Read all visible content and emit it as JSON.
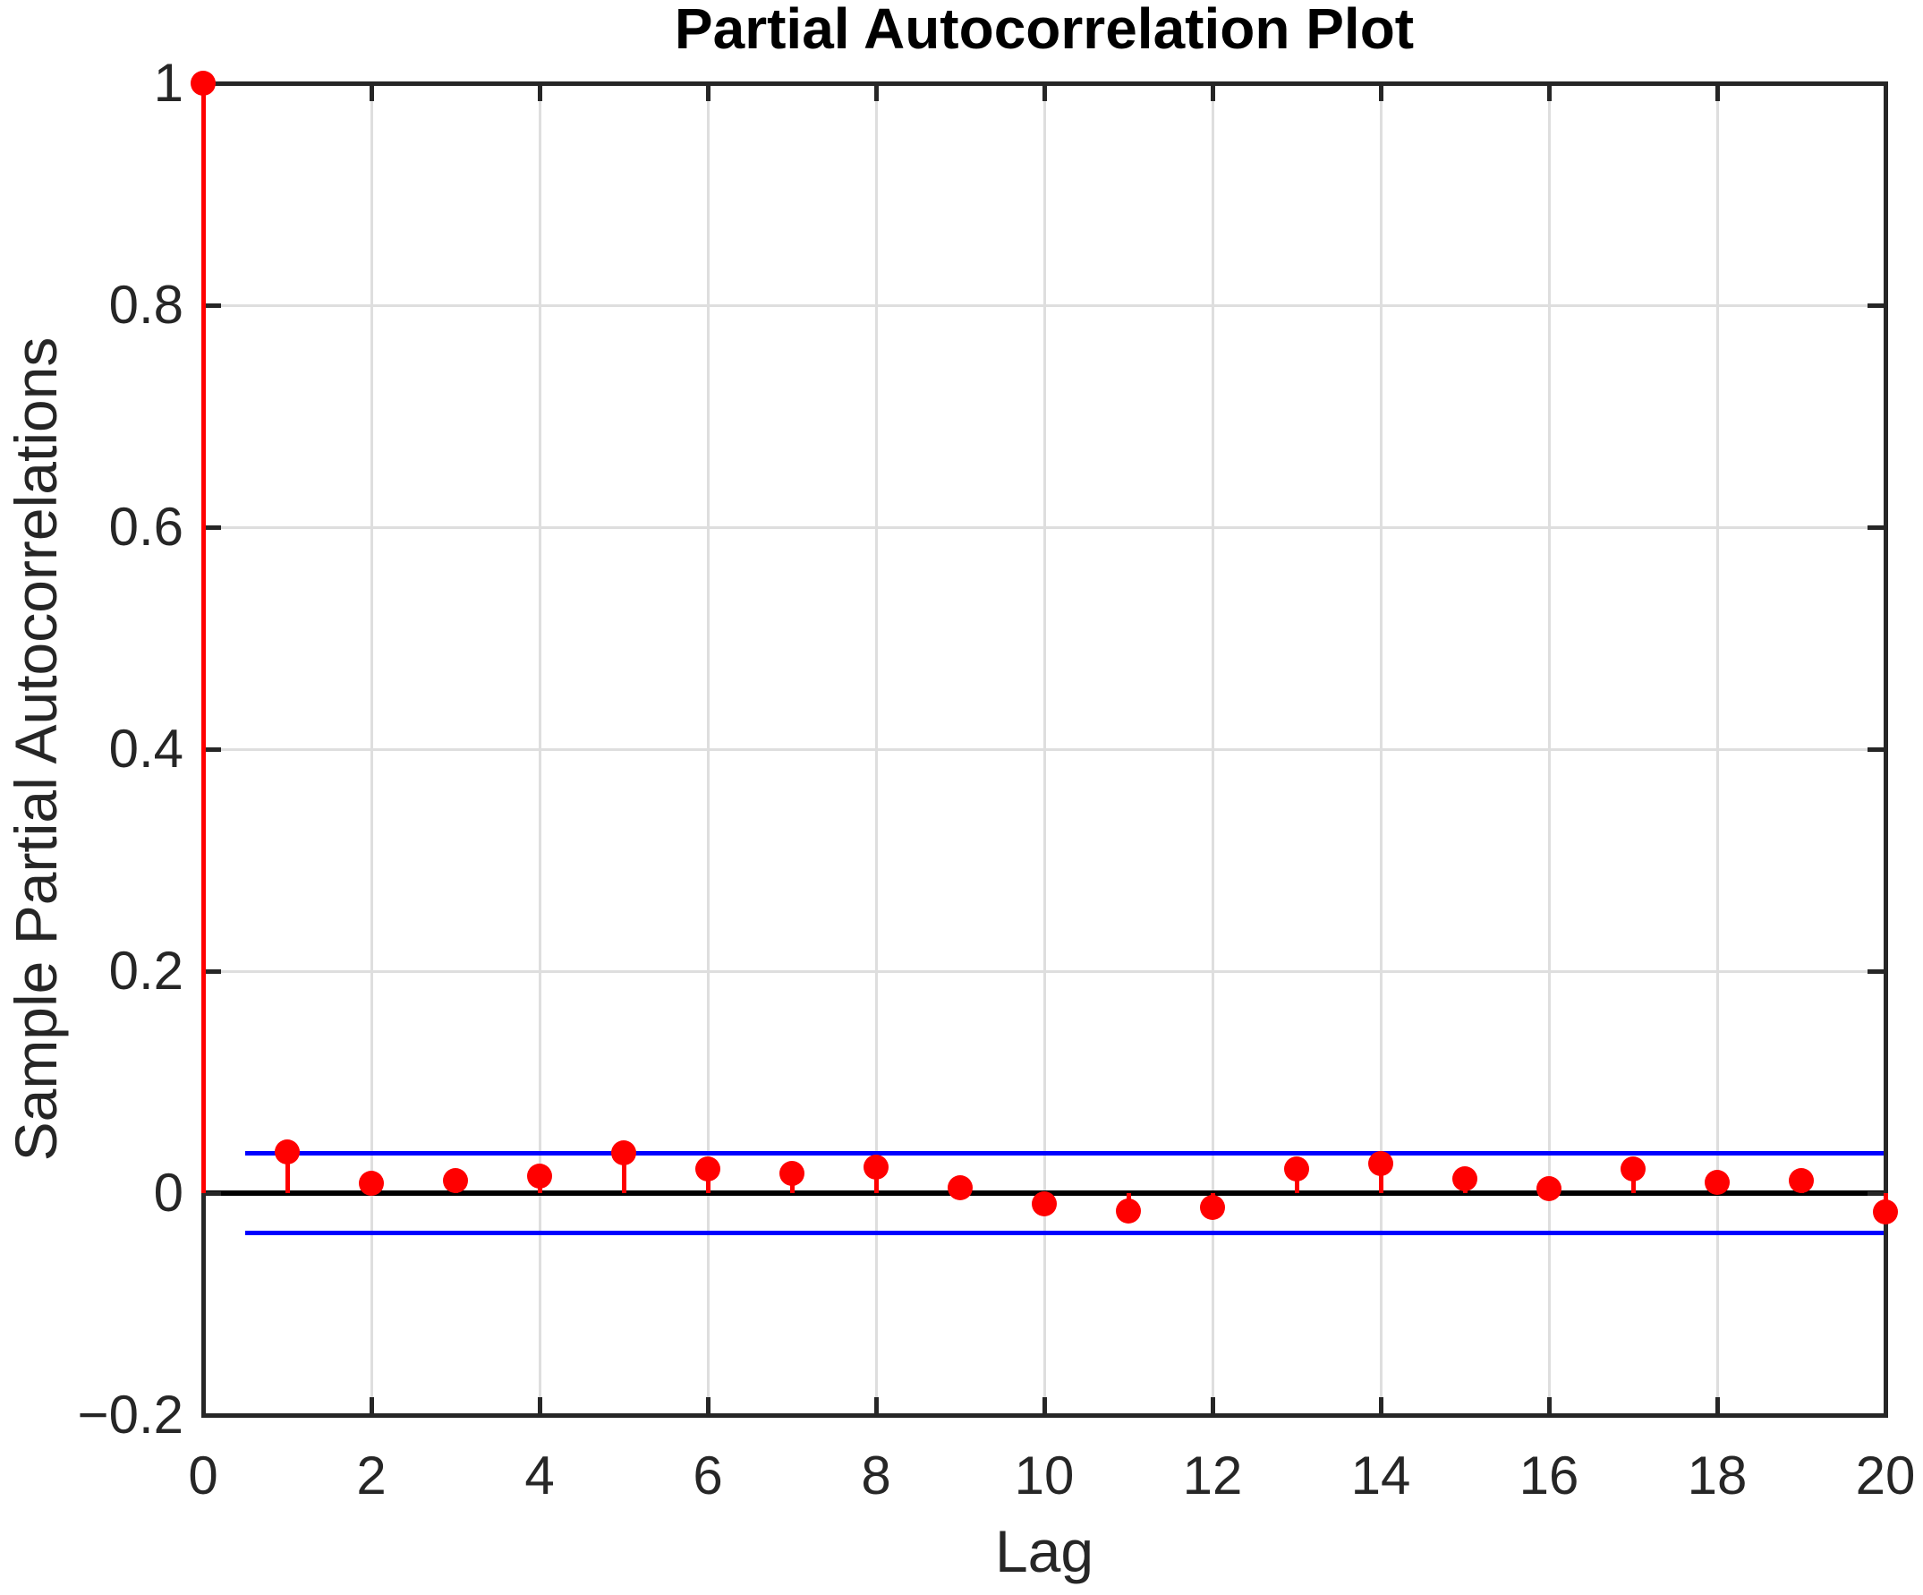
{
  "chart_data": {
    "type": "stem",
    "title": "Partial Autocorrelation Plot",
    "xlabel": "Lag",
    "ylabel": "Sample Partial Autocorrelations",
    "xlim": [
      0,
      20
    ],
    "ylim": [
      -0.2,
      1
    ],
    "grid": true,
    "legend": false,
    "x_tick_values": [
      0,
      2,
      4,
      6,
      8,
      10,
      12,
      14,
      16,
      18,
      20
    ],
    "x_tick_labels": [
      "0",
      "2",
      "4",
      "6",
      "8",
      "10",
      "12",
      "14",
      "16",
      "18",
      "20"
    ],
    "y_tick_values": [
      1,
      0.8,
      0.6,
      0.4,
      0.2,
      0,
      -0.2
    ],
    "y_tick_labels": [
      "1",
      "0.8",
      "0.6",
      "0.4",
      "0.2",
      "0",
      "−0.2"
    ],
    "lags": [
      0,
      1,
      2,
      3,
      4,
      5,
      6,
      7,
      8,
      9,
      10,
      11,
      12,
      13,
      14,
      15,
      16,
      17,
      18,
      19,
      20
    ],
    "values": [
      1,
      0.037,
      0.009,
      0.011,
      0.015,
      0.036,
      0.022,
      0.018,
      0.023,
      0.005,
      -0.01,
      -0.016,
      -0.013,
      0.022,
      0.027,
      0.013,
      0.004,
      0.022,
      0.01,
      0.011,
      -0.017
    ],
    "baseline": 0,
    "confidence_bounds": {
      "upper": 0.036,
      "lower": -0.036,
      "x_start": 0.5,
      "x_end": 20
    }
  },
  "colors": {
    "stem": "#FF0000",
    "marker": "#FF0000",
    "bounds": "#0000FF",
    "baseline": "#000000",
    "grid": "#DEDEDE",
    "axis": "#262626",
    "text": "#262626",
    "background": "#FFFFFF"
  }
}
